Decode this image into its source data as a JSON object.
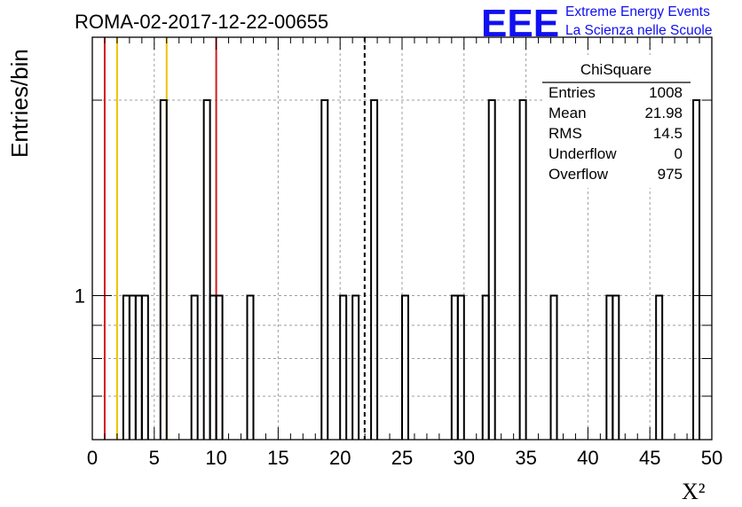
{
  "colors": {
    "histogram": "#000000",
    "grid": "#9e9e9e",
    "red_line": "#d01c1c",
    "yellow_line": "#f2c200",
    "mean_line": "#000000",
    "logo": "#1010f0"
  },
  "logo": {
    "mark": "EEE",
    "line1": "Extreme Energy Events",
    "line2": "La Scienza nelle Scuole"
  },
  "stats": {
    "title": "ChiSquare",
    "rows": [
      {
        "label": "Entries",
        "value": "1008"
      },
      {
        "label": "Mean",
        "value": "21.98"
      },
      {
        "label": "RMS",
        "value": "14.5"
      },
      {
        "label": "Underflow",
        "value": "0"
      },
      {
        "label": "Overflow",
        "value": "975"
      }
    ]
  },
  "chart_data": {
    "type": "bar",
    "title": "ROMA-02-2017-12-22-00655",
    "xlabel": "X²",
    "ylabel": "Entries/bin",
    "xlim": [
      0,
      50
    ],
    "ylim": [
      0.6,
      2.5
    ],
    "yscale": "log",
    "grid": true,
    "xticks": [
      0,
      5,
      10,
      15,
      20,
      25,
      30,
      35,
      40,
      45,
      50
    ],
    "yticks": [
      1
    ],
    "bin_width": 0.5,
    "bins": [
      {
        "x": 2.5,
        "y": 1
      },
      {
        "x": 3.0,
        "y": 1
      },
      {
        "x": 3.5,
        "y": 1
      },
      {
        "x": 4.0,
        "y": 1
      },
      {
        "x": 5.5,
        "y": 2
      },
      {
        "x": 8.0,
        "y": 1
      },
      {
        "x": 9.0,
        "y": 2
      },
      {
        "x": 9.5,
        "y": 1
      },
      {
        "x": 10.0,
        "y": 1
      },
      {
        "x": 12.5,
        "y": 1
      },
      {
        "x": 18.5,
        "y": 2
      },
      {
        "x": 20.0,
        "y": 1
      },
      {
        "x": 21.0,
        "y": 1
      },
      {
        "x": 22.5,
        "y": 2
      },
      {
        "x": 25.0,
        "y": 1
      },
      {
        "x": 29.0,
        "y": 1
      },
      {
        "x": 29.5,
        "y": 1
      },
      {
        "x": 31.5,
        "y": 1
      },
      {
        "x": 32.0,
        "y": 2
      },
      {
        "x": 34.5,
        "y": 2
      },
      {
        "x": 37.0,
        "y": 1
      },
      {
        "x": 41.5,
        "y": 1
      },
      {
        "x": 42.0,
        "y": 1
      },
      {
        "x": 45.5,
        "y": 1
      },
      {
        "x": 48.5,
        "y": 2
      }
    ],
    "vertical_lines": [
      {
        "x": 1.0,
        "color": "red"
      },
      {
        "x": 2.0,
        "color": "yellow"
      },
      {
        "x": 6.0,
        "color": "yellow"
      },
      {
        "x": 10.0,
        "color": "red"
      },
      {
        "x": 21.98,
        "color": "black-dashed"
      }
    ]
  }
}
